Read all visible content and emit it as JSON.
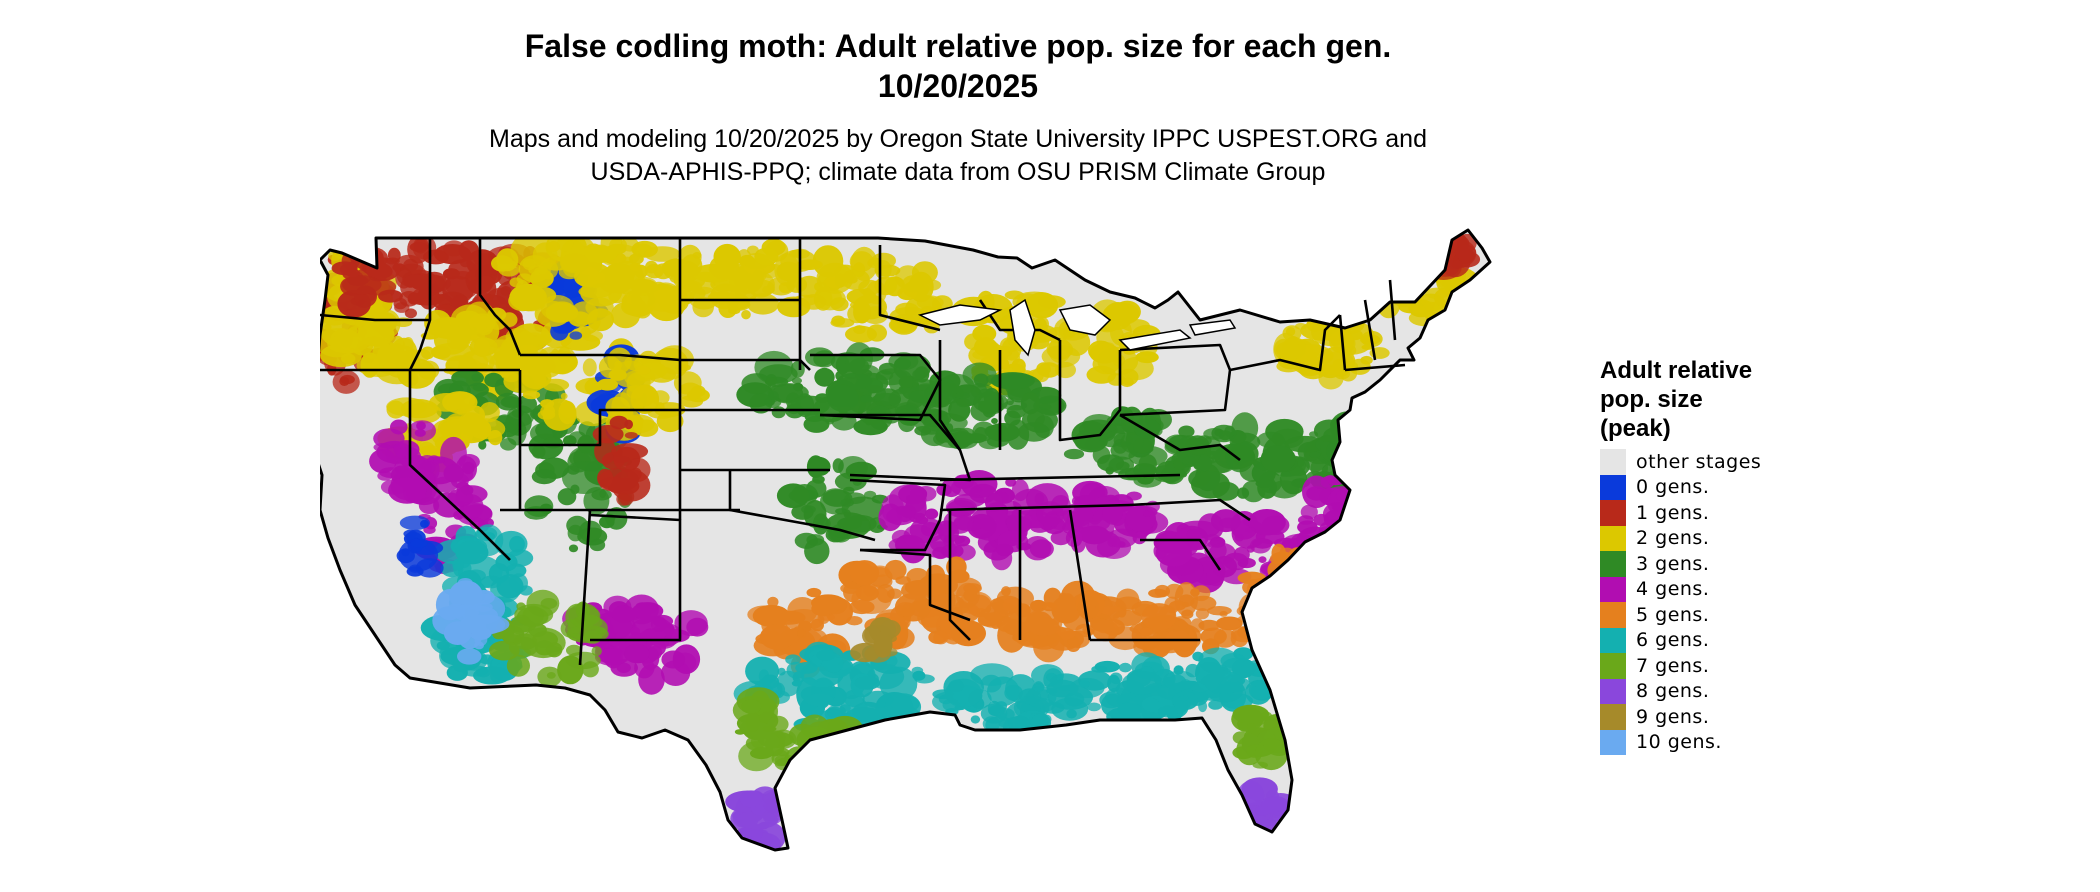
{
  "title": {
    "line1": "False codling moth: Adult relative pop. size for each gen.",
    "line2": "10/20/2025"
  },
  "subtitle": {
    "line1": "Maps and modeling 10/20/2025 by Oregon State University IPPC USPEST.ORG and",
    "line2": "USDA-APHIS-PPQ; climate data from OSU PRISM Climate Group"
  },
  "map": {
    "background_color": "#e5e5e5",
    "border_color": "#000000"
  },
  "legend": {
    "title_lines": [
      "Adult relative",
      "pop. size",
      "(peak)"
    ],
    "items": [
      {
        "label": "other stages",
        "color": "#e5e5e5"
      },
      {
        "label": "0 gens.",
        "color": "#0a3adb"
      },
      {
        "label": "1 gens.",
        "color": "#b8291a"
      },
      {
        "label": "2 gens.",
        "color": "#dcc800"
      },
      {
        "label": "3 gens.",
        "color": "#2f8a25"
      },
      {
        "label": "4 gens.",
        "color": "#b10db1"
      },
      {
        "label": "5 gens.",
        "color": "#e5801e"
      },
      {
        "label": "6 gens.",
        "color": "#14b0b0"
      },
      {
        "label": "7 gens.",
        "color": "#6aa81a"
      },
      {
        "label": "8 gens.",
        "color": "#8a47dc"
      },
      {
        "label": "9 gens.",
        "color": "#a68a2a"
      },
      {
        "label": "10 gens.",
        "color": "#6aaaf0"
      }
    ]
  }
}
